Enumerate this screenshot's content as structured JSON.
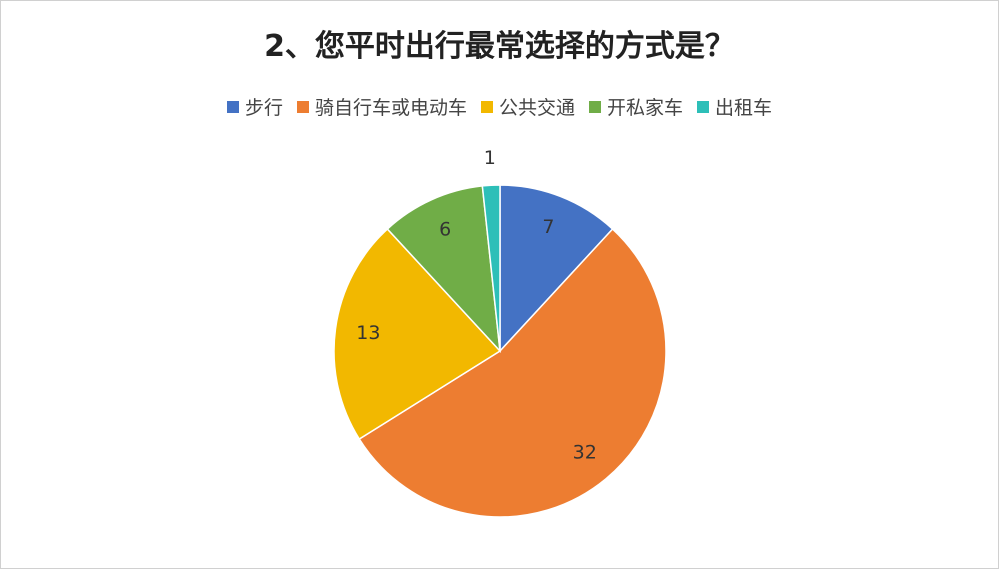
{
  "chart_data": {
    "type": "pie",
    "title": "2、您平时出行最常选择的方式是？",
    "categories": [
      "步行",
      "骑自行车或电动车",
      "公共交通",
      "开私家车",
      "出租车"
    ],
    "values": [
      7,
      32,
      13,
      6,
      1
    ],
    "colors": [
      "#4472c4",
      "#ed7d31",
      "#f2b800",
      "#70ad47",
      "#2dbfb8"
    ],
    "legend": "top"
  }
}
